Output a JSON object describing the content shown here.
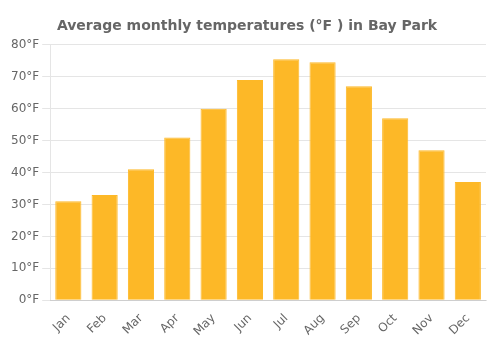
{
  "chart_data": {
    "type": "bar",
    "title": "Average monthly temperatures (°F ) in Bay Park",
    "categories": [
      "Jan",
      "Feb",
      "Mar",
      "Apr",
      "May",
      "Jun",
      "Jul",
      "Aug",
      "Sep",
      "Oct",
      "Nov",
      "Dec"
    ],
    "values": [
      31,
      33,
      41,
      51,
      60,
      69,
      75.5,
      74.5,
      67,
      57,
      47,
      37
    ],
    "color": "#FDB827",
    "ylim": [
      0,
      80
    ],
    "yticks": [
      {
        "value": 0,
        "label": "0°F"
      },
      {
        "value": 10,
        "label": "10°F"
      },
      {
        "value": 20,
        "label": "20°F"
      },
      {
        "value": 30,
        "label": "30°F"
      },
      {
        "value": 40,
        "label": "40°F"
      },
      {
        "value": 50,
        "label": "50°F"
      },
      {
        "value": 60,
        "label": "60°F"
      },
      {
        "value": 70,
        "label": "70°F"
      },
      {
        "value": 80,
        "label": "80°F"
      }
    ],
    "grid": true
  }
}
